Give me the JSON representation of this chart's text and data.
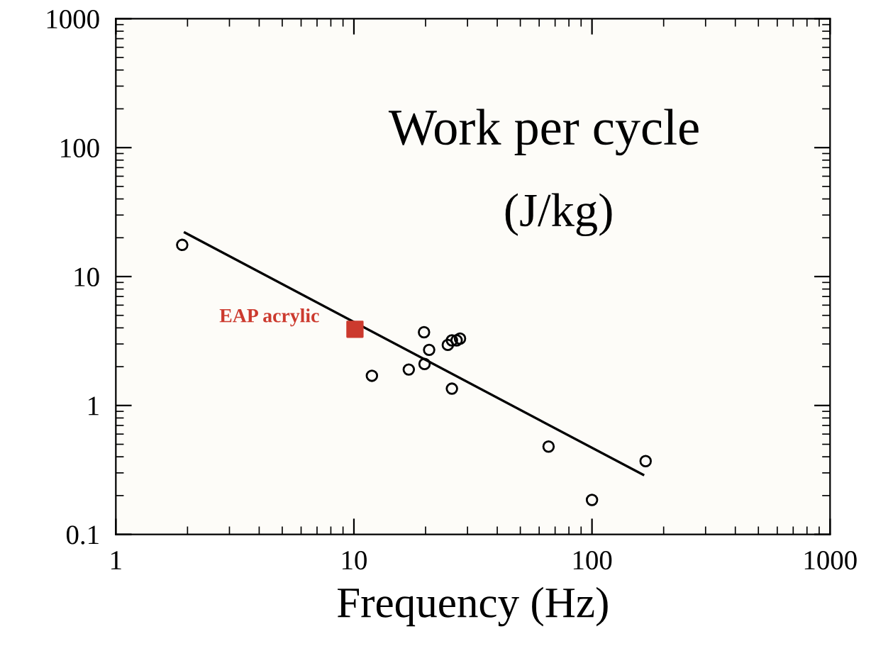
{
  "chart_data": {
    "type": "scatter",
    "xlabel": "Frequency (Hz)",
    "log": "xy",
    "grid": false,
    "xlim": [
      1,
      1000
    ],
    "xticks": [
      1,
      10,
      100,
      1000
    ],
    "ylim": [
      0.1,
      1000
    ],
    "yticks": [
      0.1,
      1,
      10,
      100,
      1000
    ],
    "annotations": [
      "Work per cycle",
      "(J/kg)",
      {
        "text": "EAP acrylic",
        "x": 10.1,
        "y": 3.9
      }
    ],
    "series": [
      {
        "marker": "circle",
        "color": "#000000",
        "x": [
          1.9,
          19.7,
          20.7,
          17,
          19.8,
          11.9,
          24.8,
          25.8,
          27,
          27.9,
          25.8,
          65.7,
          100,
          168
        ],
        "values": [
          17.6,
          3.7,
          2.7,
          1.9,
          2.1,
          1.7,
          2.95,
          3.2,
          3.2,
          3.3,
          1.35,
          0.48,
          0.185,
          0.37
        ]
      },
      {
        "marker": "square",
        "color": "#cc3a2e",
        "x": [
          10.1
        ],
        "values": [
          3.9
        ]
      },
      {
        "type": "line",
        "marker": "none",
        "line_style": "solid",
        "color": "#000000",
        "x": [
          1.95,
          164
        ],
        "values": [
          21.9,
          0.29
        ]
      }
    ]
  }
}
